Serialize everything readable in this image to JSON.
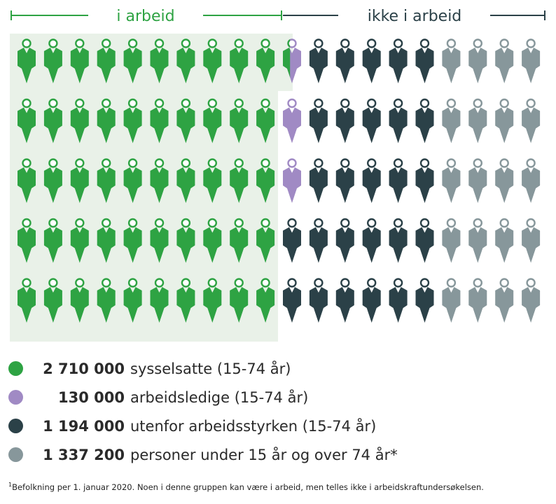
{
  "header": {
    "left_label": "i arbeid",
    "right_label": "ikke i arbeid"
  },
  "colors": {
    "employed": "#2ea343",
    "unemployed": "#a08ac4",
    "outside": "#2b4148",
    "under_over": "#87979b",
    "employed_bg": "#e9f1e8",
    "bracket_left": "#2ea343",
    "bracket_right": "#2b4148"
  },
  "icon": "person-icon",
  "chart_data": {
    "type": "pictogram",
    "grid": {
      "rows": 5,
      "columns": 20
    },
    "column_fill": [
      {
        "category": "employed",
        "columns": 10,
        "extra_fraction": 0.4
      },
      {
        "category": "unemployed",
        "rows_in_column": 3,
        "note": "partial column"
      },
      {
        "category": "outside",
        "columns": 5
      },
      {
        "category": "under_over",
        "columns": 5
      }
    ],
    "series": [
      {
        "key": "employed",
        "value": 2710000
      },
      {
        "key": "unemployed",
        "value": 130000
      },
      {
        "key": "outside",
        "value": 1194000
      },
      {
        "key": "under_over",
        "value": 1337200
      }
    ]
  },
  "legend": [
    {
      "key": "employed",
      "value": "2 710 000",
      "label": "sysselsatte (15-74 år)"
    },
    {
      "key": "unemployed",
      "value": "130 000",
      "label": "arbeidsledige (15-74 år)"
    },
    {
      "key": "outside",
      "value": "1 194 000",
      "label": "utenfor arbeidsstyrken (15-74 år)"
    },
    {
      "key": "under_over",
      "value": "1 337 200",
      "label": "personer under 15 år og over 74 år*"
    }
  ],
  "footnote": {
    "marker": "1",
    "text": "Befolkning per 1. januar 2020. Noen i denne gruppen kan være i arbeid, men telles ikke i arbeidskraftundersøkelsen."
  }
}
